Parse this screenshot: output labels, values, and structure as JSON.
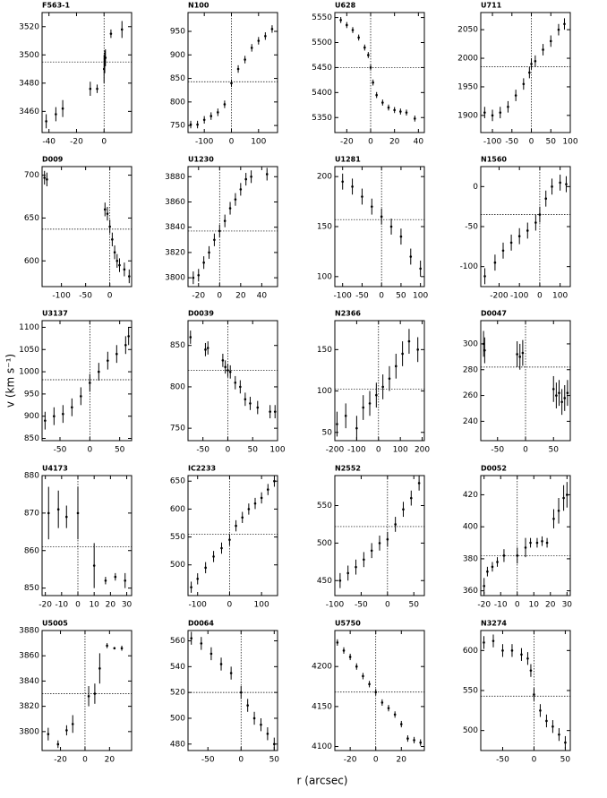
{
  "ylabel": "v (km s⁻¹)",
  "xlabel": "r (arcsec)",
  "chart_data": [
    {
      "type": "errorbar",
      "title": "F563-1",
      "x": [
        -42,
        -35,
        -30,
        -10,
        -5,
        0,
        0.5,
        1,
        5,
        13
      ],
      "values": [
        3453,
        3458,
        3462,
        3476,
        3476,
        3490,
        3495,
        3498,
        3515,
        3518
      ],
      "errors": [
        5,
        5,
        6,
        5,
        3,
        10,
        8,
        6,
        3,
        6
      ],
      "xlim": [
        -45,
        20
      ],
      "xticks": [
        -40,
        -20,
        0
      ],
      "ylim": [
        3445,
        3530
      ],
      "yticks": [
        3460,
        3480,
        3500,
        3520
      ],
      "vline": 0,
      "hline": 3495
    },
    {
      "type": "errorbar",
      "title": "N100",
      "x": [
        -150,
        -125,
        -100,
        -75,
        -50,
        -25,
        0,
        25,
        50,
        75,
        100,
        125,
        150
      ],
      "values": [
        752,
        752,
        762,
        770,
        778,
        795,
        840,
        870,
        890,
        915,
        930,
        940,
        955
      ],
      "errors": [
        8,
        8,
        8,
        8,
        8,
        8,
        8,
        8,
        8,
        8,
        8,
        8,
        8
      ],
      "xlim": [
        -160,
        170
      ],
      "xticks": [
        -100,
        0,
        100
      ],
      "ylim": [
        735,
        990
      ],
      "yticks": [
        750,
        800,
        850,
        900,
        950
      ],
      "vline": 0,
      "hline": 843
    },
    {
      "type": "errorbar",
      "title": "U628",
      "x": [
        -25,
        -20,
        -15,
        -10,
        -5,
        -2,
        0,
        2,
        5,
        10,
        15,
        20,
        25,
        30,
        37
      ],
      "values": [
        5545,
        5535,
        5525,
        5510,
        5490,
        5475,
        5450,
        5420,
        5395,
        5380,
        5370,
        5365,
        5362,
        5360,
        5348
      ],
      "errors": [
        6,
        6,
        6,
        6,
        6,
        6,
        6,
        6,
        6,
        6,
        6,
        6,
        6,
        6,
        6
      ],
      "xlim": [
        -30,
        45
      ],
      "xticks": [
        -20,
        0,
        20,
        40
      ],
      "ylim": [
        5320,
        5560
      ],
      "yticks": [
        5350,
        5400,
        5450,
        5500,
        5550
      ],
      "vline": 0,
      "hline": 5450
    },
    {
      "type": "errorbar",
      "title": "U711",
      "x": [
        -120,
        -100,
        -80,
        -60,
        -40,
        -20,
        -5,
        0,
        10,
        30,
        50,
        70,
        85
      ],
      "values": [
        1905,
        1900,
        1905,
        1915,
        1935,
        1955,
        1975,
        1990,
        1995,
        2015,
        2030,
        2050,
        2060
      ],
      "errors": [
        10,
        10,
        10,
        10,
        10,
        10,
        10,
        10,
        10,
        10,
        10,
        10,
        10
      ],
      "xlim": [
        -130,
        100
      ],
      "xticks": [
        -100,
        -50,
        0,
        50,
        100
      ],
      "ylim": [
        1870,
        2080
      ],
      "yticks": [
        1900,
        1950,
        2000,
        2050
      ],
      "vline": 0,
      "hline": 1985
    },
    {
      "type": "errorbar",
      "title": "D009",
      "x": [
        -135,
        -130,
        -10,
        -5,
        0,
        5,
        10,
        15,
        20,
        30,
        40
      ],
      "values": [
        697,
        695,
        660,
        655,
        640,
        625,
        610,
        600,
        595,
        590,
        582
      ],
      "errors": [
        8,
        8,
        8,
        8,
        8,
        8,
        8,
        8,
        8,
        8,
        8
      ],
      "xlim": [
        -140,
        45
      ],
      "xticks": [
        -100,
        -50,
        0
      ],
      "ylim": [
        570,
        710
      ],
      "yticks": [
        600,
        650,
        700
      ],
      "vline": 0,
      "hline": 637
    },
    {
      "type": "errorbar",
      "title": "U1230",
      "x": [
        -25,
        -20,
        -15,
        -10,
        -5,
        0,
        5,
        10,
        15,
        20,
        25,
        30,
        45
      ],
      "values": [
        3800,
        3802,
        3812,
        3820,
        3830,
        3837,
        3845,
        3855,
        3862,
        3870,
        3878,
        3880,
        3882
      ],
      "errors": [
        5,
        5,
        5,
        5,
        5,
        5,
        5,
        5,
        5,
        5,
        5,
        5,
        5
      ],
      "xlim": [
        -30,
        55
      ],
      "xticks": [
        -20,
        0,
        20,
        40
      ],
      "ylim": [
        3793,
        3888
      ],
      "yticks": [
        3800,
        3820,
        3840,
        3860,
        3880
      ],
      "vline": 0,
      "hline": 3837
    },
    {
      "type": "errorbar",
      "title": "U1281",
      "x": [
        -100,
        -75,
        -50,
        -25,
        0,
        25,
        50,
        75,
        100
      ],
      "values": [
        195,
        190,
        180,
        170,
        160,
        150,
        140,
        120,
        108
      ],
      "errors": [
        8,
        8,
        8,
        8,
        8,
        8,
        8,
        8,
        8
      ],
      "xlim": [
        -120,
        110
      ],
      "xticks": [
        -100,
        -50,
        0,
        50,
        100
      ],
      "ylim": [
        90,
        210
      ],
      "yticks": [
        100,
        150,
        200
      ],
      "vline": 0,
      "hline": 157
    },
    {
      "type": "errorbar",
      "title": "N1560",
      "x": [
        -270,
        -220,
        -180,
        -140,
        -100,
        -60,
        -20,
        0,
        30,
        60,
        100,
        130
      ],
      "values": [
        -112,
        -95,
        -80,
        -70,
        -62,
        -55,
        -45,
        -35,
        -15,
        0,
        5,
        3
      ],
      "errors": [
        10,
        10,
        10,
        10,
        10,
        10,
        10,
        10,
        10,
        10,
        10,
        10
      ],
      "xlim": [
        -290,
        150
      ],
      "xticks": [
        -200,
        -100,
        0,
        100
      ],
      "ylim": [
        -125,
        25
      ],
      "yticks": [
        -100,
        -50,
        0
      ],
      "vline": 0,
      "hline": -35
    },
    {
      "type": "errorbar",
      "title": "U3137",
      "x": [
        -75,
        -60,
        -45,
        -30,
        -15,
        0,
        15,
        30,
        45,
        60,
        65
      ],
      "values": [
        890,
        900,
        905,
        920,
        945,
        975,
        1000,
        1025,
        1040,
        1060,
        1080
      ],
      "errors": [
        20,
        20,
        20,
        20,
        20,
        20,
        20,
        20,
        20,
        20,
        20
      ],
      "xlim": [
        -80,
        70
      ],
      "xticks": [
        -50,
        0,
        50
      ],
      "ylim": [
        845,
        1115
      ],
      "yticks": [
        850,
        900,
        950,
        1000,
        1050,
        1100
      ],
      "vline": 0,
      "hline": 982
    },
    {
      "type": "errorbar",
      "title": "D0039",
      "x": [
        -75,
        -45,
        -40,
        -10,
        -5,
        0,
        5,
        15,
        25,
        35,
        45,
        60,
        85,
        95
      ],
      "values": [
        860,
        845,
        847,
        832,
        824,
        820,
        818,
        805,
        800,
        785,
        780,
        775,
        770,
        770
      ],
      "errors": [
        8,
        8,
        8,
        8,
        8,
        8,
        8,
        8,
        8,
        8,
        8,
        8,
        8,
        8
      ],
      "xlim": [
        -80,
        100
      ],
      "xticks": [
        -50,
        0,
        50,
        100
      ],
      "ylim": [
        735,
        880
      ],
      "yticks": [
        750,
        800,
        850
      ],
      "vline": 0,
      "hline": 820
    },
    {
      "type": "errorbar",
      "title": "N2366",
      "x": [
        -190,
        -150,
        -100,
        -70,
        -40,
        -10,
        20,
        50,
        80,
        110,
        140,
        180
      ],
      "values": [
        60,
        70,
        55,
        80,
        85,
        95,
        105,
        115,
        130,
        145,
        160,
        150
      ],
      "errors": [
        15,
        15,
        15,
        15,
        15,
        15,
        15,
        15,
        15,
        15,
        15,
        15
      ],
      "xlim": [
        -200,
        210
      ],
      "xticks": [
        -200,
        -100,
        0,
        100,
        200
      ],
      "ylim": [
        40,
        185
      ],
      "yticks": [
        50,
        100,
        150
      ],
      "vline": 0,
      "hline": 102
    },
    {
      "type": "errorbar",
      "title": "D0047",
      "x": [
        -75,
        -73,
        -15,
        -10,
        -5,
        50,
        55,
        60,
        65,
        70,
        75
      ],
      "values": [
        300,
        295,
        292,
        290,
        293,
        265,
        260,
        262,
        255,
        258,
        262
      ],
      "errors": [
        10,
        10,
        10,
        10,
        10,
        10,
        10,
        10,
        10,
        10,
        10
      ],
      "xlim": [
        -80,
        80
      ],
      "xticks": [
        -50,
        0,
        50
      ],
      "ylim": [
        225,
        318
      ],
      "yticks": [
        240,
        260,
        280,
        300
      ],
      "vline": 0,
      "hline": 282
    },
    {
      "type": "errorbar",
      "title": "U4173",
      "x": [
        -18,
        -12,
        -7,
        0,
        10,
        17,
        23,
        29
      ],
      "values": [
        870,
        871,
        869,
        870,
        856,
        852,
        853,
        852
      ],
      "errors": [
        7,
        5,
        3,
        7,
        6,
        1,
        1,
        2
      ],
      "xlim": [
        -22,
        33
      ],
      "xticks": [
        -20,
        -10,
        0,
        10,
        20,
        30
      ],
      "ylim": [
        848,
        880
      ],
      "yticks": [
        850,
        860,
        870,
        880
      ],
      "vline": 0,
      "hline": 861
    },
    {
      "type": "errorbar",
      "title": "IC2233",
      "x": [
        -120,
        -100,
        -75,
        -50,
        -25,
        0,
        20,
        40,
        60,
        80,
        100,
        120,
        140
      ],
      "values": [
        460,
        475,
        495,
        515,
        530,
        545,
        570,
        585,
        600,
        610,
        620,
        635,
        650
      ],
      "errors": [
        10,
        10,
        10,
        10,
        10,
        10,
        10,
        10,
        10,
        10,
        10,
        10,
        10
      ],
      "xlim": [
        -130,
        150
      ],
      "xticks": [
        -100,
        0,
        100
      ],
      "ylim": [
        445,
        660
      ],
      "yticks": [
        500,
        550,
        600,
        650
      ],
      "vline": 0,
      "hline": 555
    },
    {
      "type": "errorbar",
      "title": "N2552",
      "x": [
        -90,
        -75,
        -60,
        -45,
        -30,
        -15,
        0,
        15,
        30,
        45,
        60
      ],
      "values": [
        450,
        460,
        468,
        478,
        490,
        500,
        505,
        525,
        545,
        560,
        580
      ],
      "errors": [
        10,
        10,
        10,
        10,
        10,
        10,
        10,
        10,
        10,
        10,
        10
      ],
      "xlim": [
        -100,
        70
      ],
      "xticks": [
        -100,
        -50,
        0,
        50
      ],
      "ylim": [
        430,
        590
      ],
      "yticks": [
        450,
        500,
        550
      ],
      "vline": 0,
      "hline": 522
    },
    {
      "type": "errorbar",
      "title": "D0052",
      "x": [
        -20,
        -18,
        -15,
        -12,
        -8,
        0,
        5,
        8,
        12,
        15,
        18,
        22,
        25,
        28,
        30
      ],
      "values": [
        363,
        372,
        375,
        378,
        382,
        382,
        387,
        390,
        390,
        391,
        390,
        405,
        410,
        418,
        420
      ],
      "errors": [
        5,
        3,
        3,
        3,
        4,
        5,
        6,
        3,
        3,
        3,
        3,
        6,
        8,
        8,
        8
      ],
      "xlim": [
        -22,
        32
      ],
      "xticks": [
        -20,
        -10,
        0,
        10,
        20,
        30
      ],
      "ylim": [
        357,
        432
      ],
      "yticks": [
        360,
        380,
        400,
        420
      ],
      "vline": 0,
      "hline": 382
    },
    {
      "type": "errorbar",
      "title": "U5005",
      "x": [
        -30,
        -22,
        -15,
        -10,
        3,
        8,
        12,
        18,
        24,
        30
      ],
      "values": [
        3798,
        3790,
        3801,
        3806,
        3828,
        3830,
        3850,
        3868,
        3866,
        3866
      ],
      "errors": [
        5,
        3,
        4,
        7,
        8,
        8,
        12,
        2,
        1,
        2
      ],
      "xlim": [
        -35,
        38
      ],
      "xticks": [
        -20,
        0,
        20
      ],
      "ylim": [
        3785,
        3880
      ],
      "yticks": [
        3800,
        3820,
        3840,
        3860,
        3880
      ],
      "vline": 0,
      "hline": 3830
    },
    {
      "type": "errorbar",
      "title": "D0064",
      "x": [
        -75,
        -60,
        -45,
        -30,
        -15,
        0,
        10,
        20,
        30,
        40,
        50
      ],
      "values": [
        562,
        558,
        550,
        542,
        535,
        520,
        510,
        500,
        495,
        488,
        480
      ],
      "errors": [
        5,
        5,
        5,
        5,
        5,
        5,
        5,
        5,
        5,
        5,
        5
      ],
      "xlim": [
        -80,
        55
      ],
      "xticks": [
        -50,
        0,
        50
      ],
      "ylim": [
        475,
        568
      ],
      "yticks": [
        480,
        500,
        520,
        540,
        560
      ],
      "vline": 0,
      "hline": 520
    },
    {
      "type": "errorbar",
      "title": "U5750",
      "x": [
        -30,
        -25,
        -20,
        -15,
        -10,
        -5,
        0,
        5,
        10,
        15,
        20,
        25,
        30,
        35
      ],
      "values": [
        4230,
        4220,
        4212,
        4200,
        4188,
        4178,
        4168,
        4155,
        4148,
        4140,
        4128,
        4110,
        4108,
        4105
      ],
      "errors": [
        4,
        4,
        4,
        4,
        4,
        4,
        4,
        4,
        4,
        4,
        4,
        4,
        4,
        4
      ],
      "xlim": [
        -32,
        38
      ],
      "xticks": [
        -20,
        0,
        20
      ],
      "ylim": [
        4095,
        4245
      ],
      "yticks": [
        4100,
        4150,
        4200
      ],
      "vline": 0,
      "hline": 4168
    },
    {
      "type": "errorbar",
      "title": "N3274",
      "x": [
        -80,
        -65,
        -50,
        -35,
        -20,
        -10,
        -5,
        0,
        10,
        20,
        30,
        40,
        50
      ],
      "values": [
        610,
        612,
        600,
        600,
        595,
        590,
        575,
        545,
        525,
        512,
        505,
        495,
        485
      ],
      "errors": [
        8,
        8,
        8,
        8,
        8,
        8,
        8,
        8,
        8,
        8,
        8,
        8,
        8
      ],
      "xlim": [
        -85,
        58
      ],
      "xticks": [
        -50,
        0,
        50
      ],
      "ylim": [
        475,
        625
      ],
      "yticks": [
        500,
        550,
        600
      ],
      "vline": 0,
      "hline": 543
    }
  ]
}
